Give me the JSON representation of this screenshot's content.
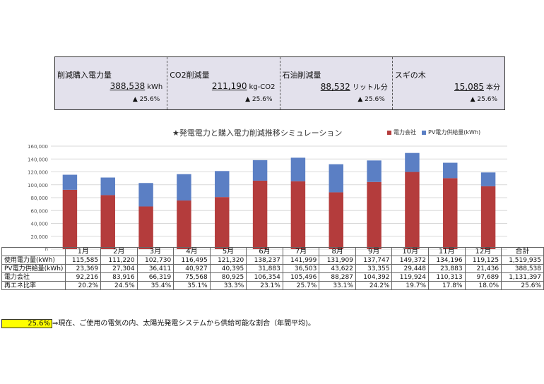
{
  "summary": [
    {
      "label": "削減購入電力量",
      "value": "388,538",
      "unit": "kWh",
      "change": "▲ 25.6%"
    },
    {
      "label": "CO2削減量",
      "value": "211,190",
      "unit": "kg-CO2",
      "change": "▲ 25.6%"
    },
    {
      "label": "石油削減量",
      "value": "88,532",
      "unit": "リットル分",
      "change": "▲ 25.6%"
    },
    {
      "label": "スギの木",
      "value": "15,085",
      "unit": "本分",
      "change": "▲ 25.6%"
    }
  ],
  "chart_data": {
    "type": "bar",
    "stacked": true,
    "title": "★発電電力と購入電力削減推移シミュレーション",
    "categories": [
      "1月",
      "2月",
      "3月",
      "4月",
      "5月",
      "6月",
      "7月",
      "8月",
      "9月",
      "10月",
      "11月",
      "12月"
    ],
    "series": [
      {
        "name": "電力会社",
        "color": "#b43c3c",
        "values": [
          92216,
          83916,
          66319,
          75568,
          80925,
          106354,
          105496,
          88287,
          104392,
          119924,
          110313,
          97689
        ]
      },
      {
        "name": "PV電力供給量(kWh)",
        "color": "#5b7fc4",
        "values": [
          23369,
          27304,
          36411,
          40927,
          40395,
          31883,
          36503,
          43622,
          33355,
          29448,
          23883,
          21436
        ]
      }
    ],
    "ylim": [
      0,
      160000
    ],
    "yticks": [
      "0",
      "20,000",
      "40,000",
      "60,000",
      "80,000",
      "100,000",
      "120,000",
      "140,000",
      "160,000"
    ],
    "grid": true,
    "legend_position": "top-right"
  },
  "table": {
    "headers": [
      "",
      "1月",
      "2月",
      "3月",
      "4月",
      "5月",
      "6月",
      "7月",
      "8月",
      "9月",
      "10月",
      "11月",
      "12月",
      "合計"
    ],
    "rows": [
      [
        "使用電力量(kWh)",
        "115,585",
        "111,220",
        "102,730",
        "116,495",
        "121,320",
        "138,237",
        "141,999",
        "131,909",
        "137,747",
        "149,372",
        "134,196",
        "119,125",
        "1,519,935"
      ],
      [
        "PV電力供給量(kWh)",
        "23,369",
        "27,304",
        "36,411",
        "40,927",
        "40,395",
        "31,883",
        "36,503",
        "43,622",
        "33,355",
        "29,448",
        "23,883",
        "21,436",
        "388,538"
      ],
      [
        "電力会社",
        "92,216",
        "83,916",
        "66,319",
        "75,568",
        "80,925",
        "106,354",
        "105,496",
        "88,287",
        "104,392",
        "119,924",
        "110,313",
        "97,689",
        "1,131,397"
      ],
      [
        "再エネ比率",
        "20.2%",
        "24.5%",
        "35.4%",
        "35.1%",
        "33.3%",
        "23.1%",
        "25.7%",
        "33.1%",
        "24.2%",
        "19.7%",
        "17.8%",
        "18.0%",
        "25.6%"
      ]
    ]
  },
  "footnote": {
    "highlight": "25.6%",
    "text": "⇒現在、ご使用の電気の内、太陽光発電システムから供給可能な割合（年間平均)。"
  }
}
